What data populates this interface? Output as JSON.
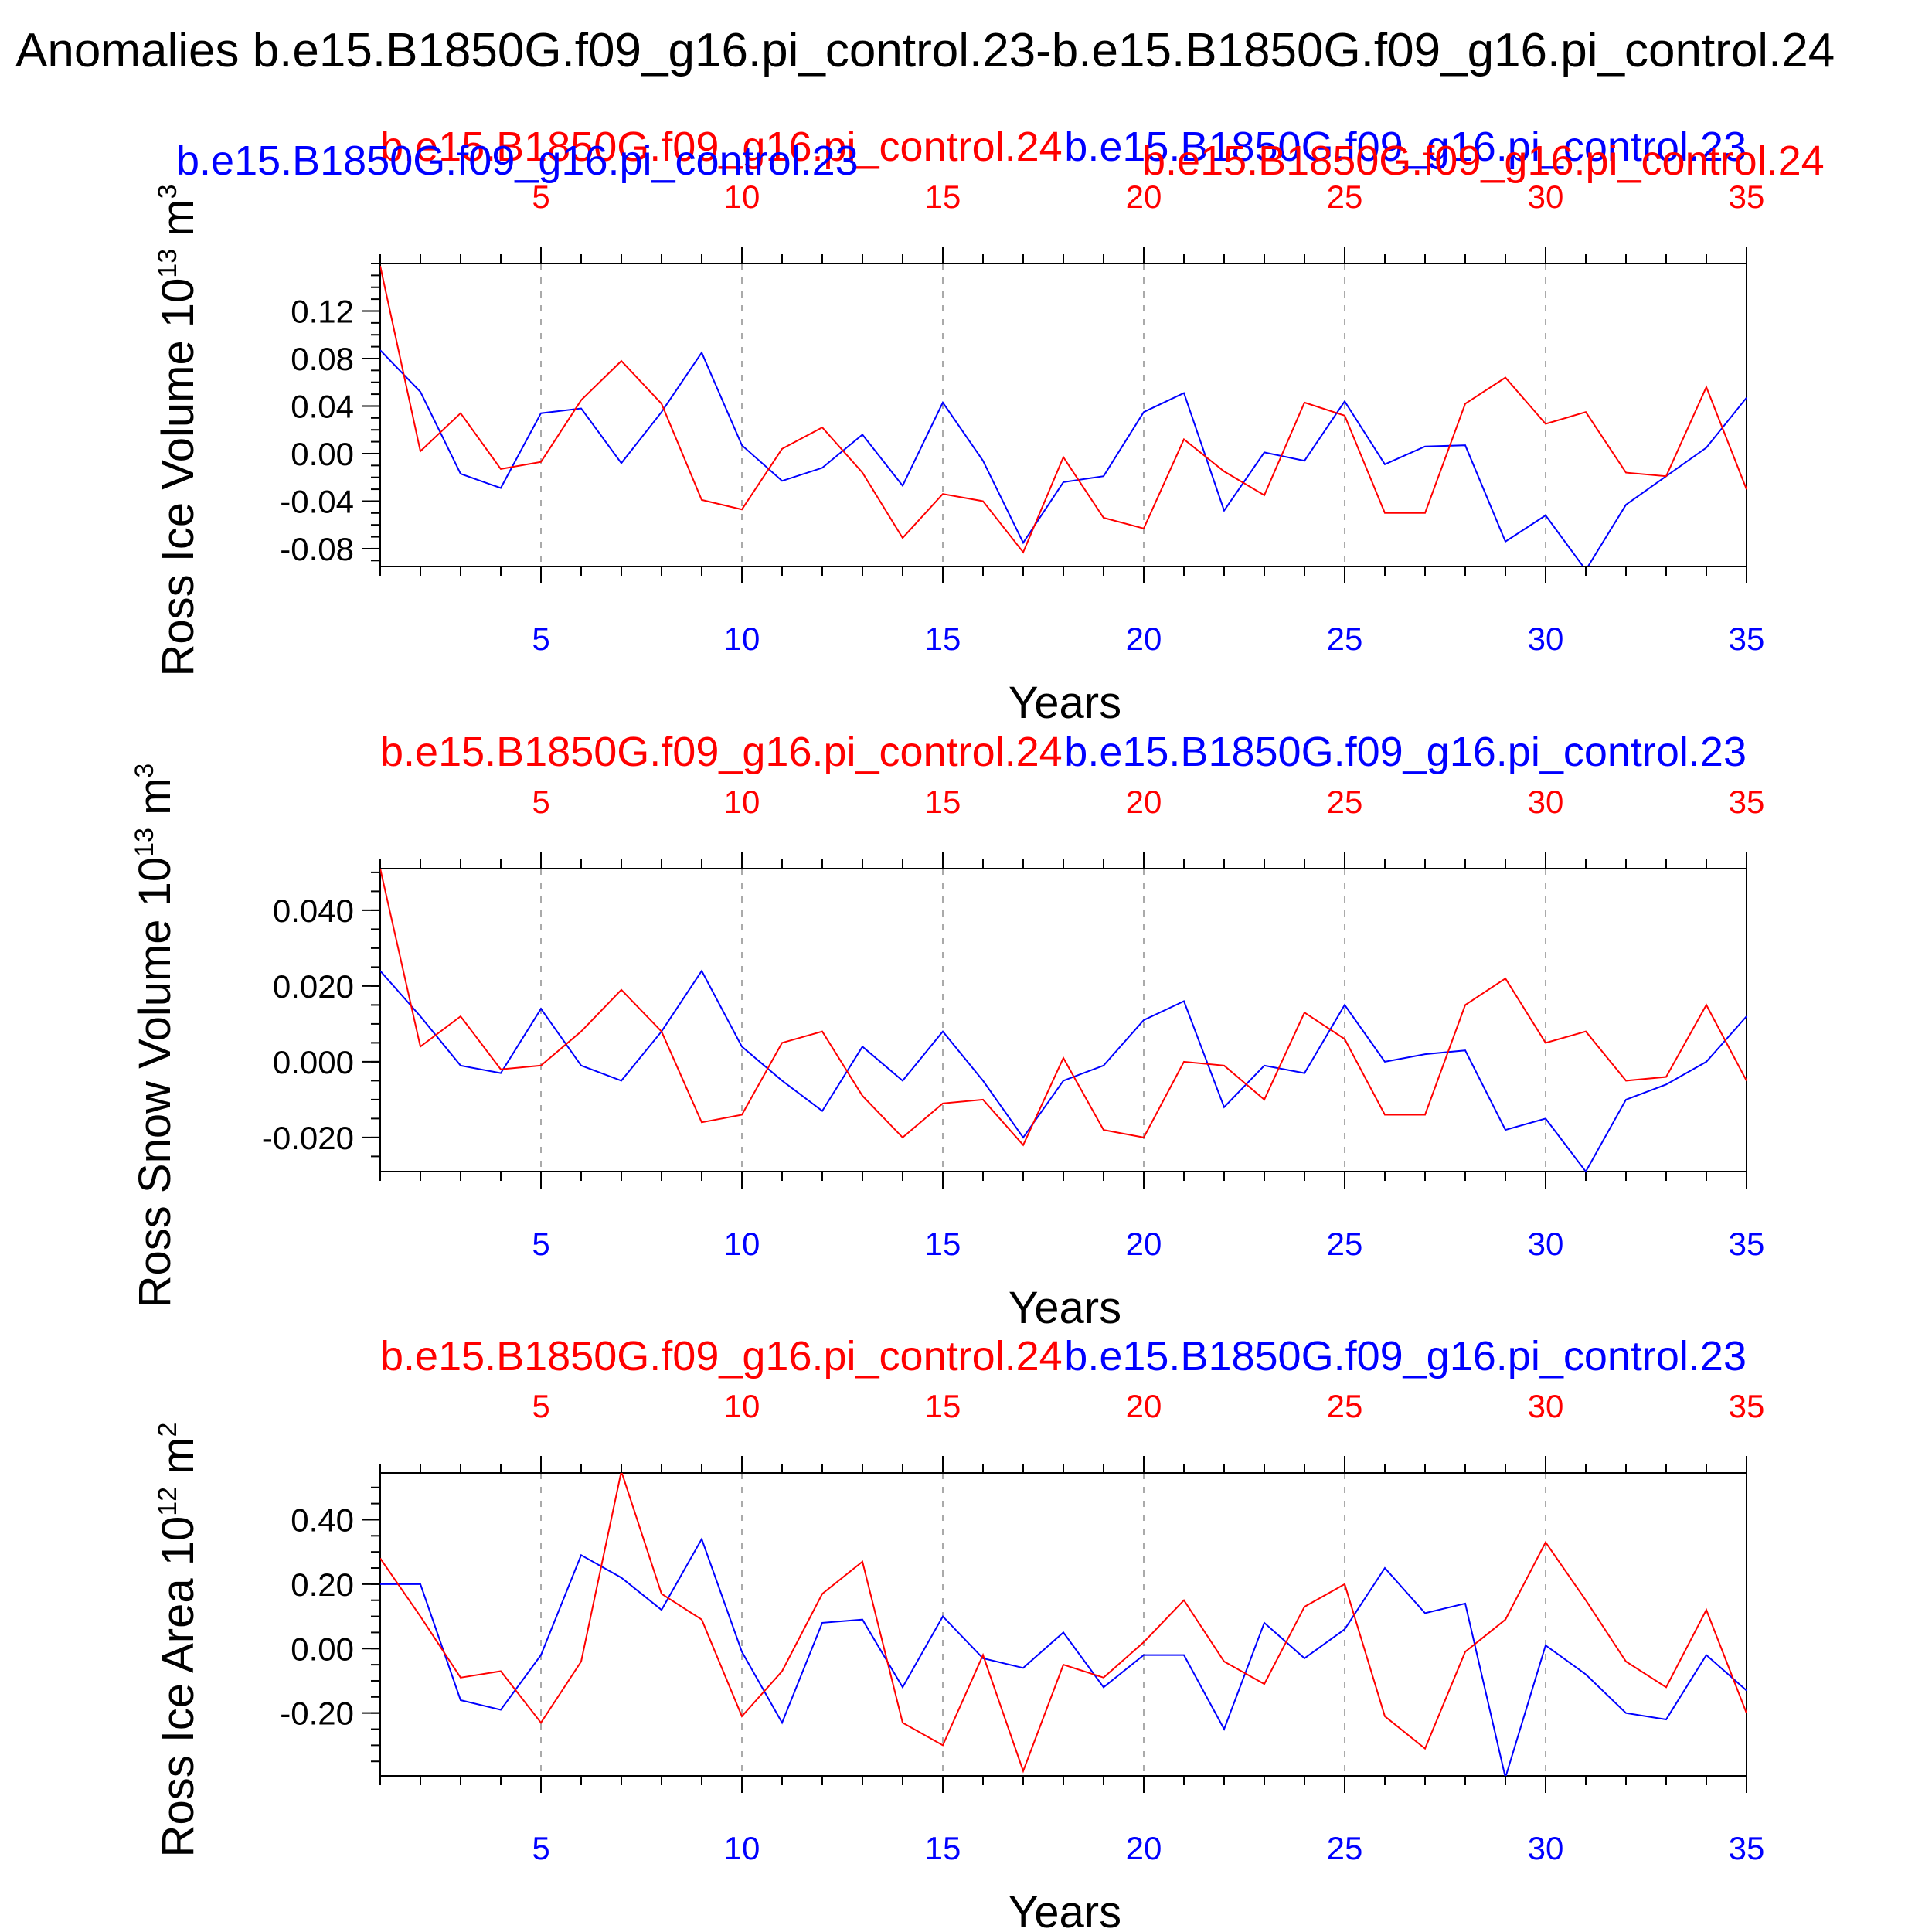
{
  "page_title": "Anomalies b.e15.B1850G.f09_g16.pi_control.23-b.e15.B1850G.f09_g16.pi_control.24",
  "colors": {
    "blue": "#0000ff",
    "red": "#ff0000",
    "axis": "#000000",
    "grid": "#aaaaaa"
  },
  "chart_data": [
    {
      "type": "line",
      "ylabel": "Ross Ice Volume 10",
      "ylabel_exp": "13",
      "ylabel_unit": " m",
      "ylabel_unit_exp": "3",
      "xlabel": "Years",
      "top_titles": {
        "red": "b.e15.B1850G.f09_g16.pi_control.24",
        "blue": "b.e15.B1850G.f09_g16.pi_control.23",
        "blue_extra": "b.e15.B1850G.f09_g16.pi_control.23",
        "red_extra": "b.e15.B1850G.f09_g16.pi_control.24"
      },
      "xlim": [
        1,
        35
      ],
      "ylim": [
        -0.095,
        0.16
      ],
      "x_ticks": [
        "5",
        "10",
        "15",
        "20",
        "25",
        "30",
        "35"
      ],
      "y_ticks": [
        "0.12",
        "0.08",
        "0.04",
        "0.00",
        "-0.04",
        "-0.08"
      ],
      "y_tick_values": [
        0.12,
        0.08,
        0.04,
        0.0,
        -0.04,
        -0.08
      ],
      "grid": "vertical dashed at major x ticks",
      "series": [
        {
          "name": "b.e15.B1850G.f09_g16.pi_control.23",
          "color": "#0000ff",
          "values": [
            0.087,
            0.052,
            -0.017,
            -0.029,
            0.034,
            0.038,
            -0.008,
            0.035,
            0.085,
            0.007,
            -0.023,
            -0.012,
            0.016,
            -0.027,
            0.043,
            -0.006,
            -0.075,
            -0.024,
            -0.019,
            0.035,
            0.051,
            -0.048,
            0.001,
            -0.006,
            0.044,
            -0.009,
            0.006,
            0.007,
            -0.074,
            -0.052,
            -0.098,
            -0.043,
            -0.019,
            0.005,
            0.047
          ]
        },
        {
          "name": "b.e15.B1850G.f09_g16.pi_control.24",
          "color": "#ff0000",
          "values": [
            0.158,
            0.002,
            0.034,
            -0.013,
            -0.007,
            0.045,
            0.078,
            0.042,
            -0.039,
            -0.047,
            0.004,
            0.022,
            -0.016,
            -0.071,
            -0.034,
            -0.04,
            -0.083,
            -0.003,
            -0.054,
            -0.063,
            0.012,
            -0.015,
            -0.035,
            0.043,
            0.032,
            -0.05,
            -0.05,
            0.042,
            0.064,
            0.025,
            0.035,
            -0.016,
            -0.019,
            0.056,
            -0.03
          ]
        }
      ]
    },
    {
      "type": "line",
      "ylabel": "Ross Snow Volume 10",
      "ylabel_exp": "13",
      "ylabel_unit": " m",
      "ylabel_unit_exp": "3",
      "xlabel": "Years",
      "top_titles": {
        "red": "b.e15.B1850G.f09_g16.pi_control.24",
        "blue": "b.e15.B1850G.f09_g16.pi_control.23"
      },
      "xlim": [
        1,
        35
      ],
      "ylim": [
        -0.029,
        0.051
      ],
      "x_ticks": [
        "5",
        "10",
        "15",
        "20",
        "25",
        "30",
        "35"
      ],
      "y_ticks": [
        "0.040",
        "0.020",
        "0.000",
        "-0.020"
      ],
      "y_tick_values": [
        0.04,
        0.02,
        0.0,
        -0.02
      ],
      "grid": "vertical dashed at major x ticks",
      "series": [
        {
          "name": "b.e15.B1850G.f09_g16.pi_control.23",
          "color": "#0000ff",
          "values": [
            0.024,
            0.012,
            -0.001,
            -0.003,
            0.014,
            -0.001,
            -0.005,
            0.008,
            0.024,
            0.004,
            -0.005,
            -0.013,
            0.004,
            -0.005,
            0.008,
            -0.005,
            -0.02,
            -0.005,
            -0.001,
            0.011,
            0.016,
            -0.012,
            -0.001,
            -0.003,
            0.015,
            0.0,
            0.002,
            0.003,
            -0.018,
            -0.015,
            -0.029,
            -0.01,
            -0.006,
            0.0,
            0.012
          ]
        },
        {
          "name": "b.e15.B1850G.f09_g16.pi_control.24",
          "color": "#ff0000",
          "values": [
            0.051,
            0.004,
            0.012,
            -0.002,
            -0.001,
            0.008,
            0.019,
            0.008,
            -0.016,
            -0.014,
            0.005,
            0.008,
            -0.009,
            -0.02,
            -0.011,
            -0.01,
            -0.022,
            0.001,
            -0.018,
            -0.02,
            0.0,
            -0.001,
            -0.01,
            0.013,
            0.006,
            -0.014,
            -0.014,
            0.015,
            0.022,
            0.005,
            0.008,
            -0.005,
            -0.004,
            0.015,
            -0.005
          ]
        }
      ]
    },
    {
      "type": "line",
      "ylabel": "Ross Ice Area 10",
      "ylabel_exp": "12",
      "ylabel_unit": " m",
      "ylabel_unit_exp": "2",
      "xlabel": "Years",
      "top_titles": {
        "red": "b.e15.B1850G.f09_g16.pi_control.24",
        "blue": "b.e15.B1850G.f09_g16.pi_control.23"
      },
      "xlim": [
        1,
        35
      ],
      "ylim": [
        -0.395,
        0.545
      ],
      "x_ticks": [
        "5",
        "10",
        "15",
        "20",
        "25",
        "30",
        "35"
      ],
      "y_ticks": [
        "0.40",
        "0.20",
        "0.00",
        "-0.20"
      ],
      "y_tick_values": [
        0.4,
        0.2,
        0.0,
        -0.2
      ],
      "grid": "vertical dashed at major x ticks",
      "series": [
        {
          "name": "b.e15.B1850G.f09_g16.pi_control.23",
          "color": "#0000ff",
          "values": [
            0.2,
            0.2,
            -0.16,
            -0.19,
            -0.02,
            0.29,
            0.22,
            0.12,
            0.34,
            -0.01,
            -0.23,
            0.08,
            0.09,
            -0.12,
            0.1,
            -0.03,
            -0.06,
            0.05,
            -0.12,
            -0.02,
            -0.02,
            -0.25,
            0.08,
            -0.03,
            0.06,
            0.25,
            0.11,
            0.14,
            -0.4,
            0.01,
            -0.08,
            -0.2,
            -0.22,
            -0.02,
            -0.13
          ]
        },
        {
          "name": "b.e15.B1850G.f09_g16.pi_control.24",
          "color": "#ff0000",
          "values": [
            0.28,
            0.1,
            -0.09,
            -0.07,
            -0.23,
            -0.04,
            0.55,
            0.17,
            0.09,
            -0.21,
            -0.07,
            0.17,
            0.27,
            -0.23,
            -0.3,
            -0.02,
            -0.38,
            -0.05,
            -0.09,
            0.02,
            0.15,
            -0.04,
            -0.11,
            0.13,
            0.2,
            -0.21,
            -0.31,
            -0.01,
            0.09,
            0.33,
            0.15,
            -0.04,
            -0.12,
            0.12,
            -0.2
          ]
        }
      ]
    }
  ]
}
